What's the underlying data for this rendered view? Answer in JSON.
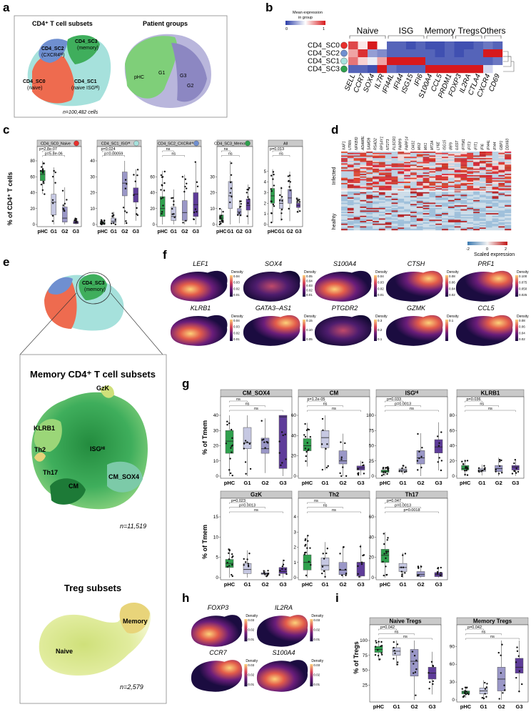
{
  "panels": {
    "a": "a",
    "b": "b",
    "c": "c",
    "d": "d",
    "e": "e",
    "f": "f",
    "g": "g",
    "h": "h",
    "i": "i"
  },
  "panel_a": {
    "umap1_title": "CD4⁺ T cell subsets",
    "umap2_title": "Patient groups",
    "sc2": "CD4_SC2",
    "sc2_sub": "(CXCR4ᴴᴵ)",
    "sc3": "CD4_SC3",
    "sc3_sub": "(memory)",
    "sc0": "CD4_SC0",
    "sc0_sub": "(naive)",
    "sc1": "CD4_SC1",
    "sc1_sub": "(naive ISGᴴᴵ)",
    "groups": [
      "pHC",
      "G1",
      "G3",
      "G2"
    ],
    "cells": "n=100,482 cells"
  },
  "panel_b": {
    "legend_title1": "Mean expression",
    "legend_title2": "in group",
    "legend_min": "0",
    "legend_max": "1",
    "rows": [
      "CD4_SC0",
      "CD4_SC2",
      "CD4_SC1",
      "CD4_SC3"
    ],
    "row_colors": [
      "#e8302d",
      "#6f8fd0",
      "#a6e1dc",
      "#2fa04d"
    ],
    "genes": [
      "SELL",
      "CCR7",
      "SOX4",
      "IL7R",
      "IFI44L",
      "IFI44",
      "ISG15",
      "IFI6",
      "S100A4",
      "CCL5",
      "PRDM1",
      "FOXP3",
      "IL2RA",
      "CTLA4",
      "CXCR4",
      "CD69"
    ],
    "groups": [
      {
        "name": "Naive",
        "n": 4
      },
      {
        "name": "ISG",
        "n": 4
      },
      {
        "name": "Memory",
        "n": 3
      },
      {
        "name": "Tregs",
        "n": 3
      },
      {
        "name": "Others",
        "n": 2
      }
    ],
    "values": [
      [
        0.9,
        0.55,
        1.0,
        0.5,
        0.1,
        0.1,
        0.05,
        0.1,
        0.05,
        0.05,
        0.1,
        0.05,
        0.05,
        0.1,
        0.15,
        0.1
      ],
      [
        0.7,
        0.95,
        0.25,
        0.2,
        0.1,
        0.1,
        0.1,
        0.1,
        0.1,
        0.05,
        0.1,
        0.05,
        0.1,
        0.1,
        1.0,
        1.0
      ],
      [
        0.8,
        0.6,
        0.45,
        0.7,
        1.0,
        1.0,
        1.0,
        1.0,
        0.1,
        0.1,
        0.1,
        0.1,
        0.1,
        0.1,
        0.1,
        0.15
      ],
      [
        0.1,
        0.1,
        0.05,
        1.0,
        0.15,
        0.1,
        0.1,
        0.1,
        1.0,
        1.0,
        1.0,
        1.0,
        1.0,
        1.0,
        0.4,
        0.5
      ]
    ]
  },
  "panel_c": {
    "ylabel": "% of CD4⁺ T cells",
    "xcats": [
      "pHC",
      "G1",
      "G2",
      "G3"
    ],
    "subplots": [
      {
        "title": "CD4_SC0_Naive",
        "dot": "#e8302d",
        "ymax": 80,
        "ticks": [
          0,
          20,
          40,
          60,
          80
        ],
        "p": [
          "p=2.8e-07",
          "p=5.8e-06"
        ],
        "medians": [
          63,
          28,
          8,
          2
        ],
        "q1": [
          55,
          12,
          3,
          1
        ],
        "q3": [
          68,
          38,
          22,
          4
        ]
      },
      {
        "title": "CD4_SC1_ISGᴴᴵ",
        "dot": "#a6e1dc",
        "ymax": 40,
        "ticks": [
          0,
          10,
          20,
          30,
          40
        ],
        "p": [
          "p=0.024",
          "p=0.00059"
        ],
        "medians": [
          1,
          2,
          26,
          19
        ],
        "q1": [
          0.5,
          1,
          18,
          14
        ],
        "q3": [
          1.5,
          4,
          33,
          23
        ]
      },
      {
        "title": "CD4_SC2_CXCR4ᴴᴵ",
        "dot": "#6f8fd0",
        "ymax": 80,
        "ticks": [
          0,
          20,
          40,
          60
        ],
        "p": [
          "ns",
          "ns"
        ],
        "medians": [
          20,
          10,
          15,
          25
        ],
        "q1": [
          10,
          5,
          5,
          10
        ],
        "q3": [
          35,
          22,
          30,
          40
        ]
      },
      {
        "title": "CD4_SC3_Memory",
        "dot": "#2fa04d",
        "ymax": 40,
        "ticks": [
          0,
          10,
          20,
          30
        ],
        "p": [
          "ns",
          "ns"
        ],
        "medians": [
          4,
          18,
          8,
          12
        ],
        "q1": [
          3,
          10,
          6,
          9
        ],
        "q3": [
          6,
          27,
          10,
          16
        ]
      },
      {
        "title": "All",
        "dot": "",
        "ymax": 6,
        "ticks": [
          0,
          1,
          2,
          3,
          4,
          5
        ],
        "p": [
          "p=0.013",
          "ns"
        ],
        "medians": [
          2.7,
          2.0,
          2.5,
          1.8
        ],
        "q1": [
          2.0,
          1.5,
          2.0,
          1.6
        ],
        "q3": [
          3.4,
          2.4,
          3.3,
          2.0
        ]
      }
    ]
  },
  "panel_d": {
    "genes": [
      "XAF1",
      "UTRN",
      "NFKBID",
      "ADAM8L",
      "SAMD9",
      "RSAD2",
      "RPS4Y1",
      "NT2T3",
      "PLSCR1",
      "PARP9",
      "PARP14",
      "OAS1",
      "MX2",
      "MX1",
      "MT2A",
      "LY6E",
      "ISG15",
      "IRF9",
      "IL6ST",
      "IFITM1",
      "IFIT3",
      "IFIT1",
      "IFI6",
      "IFI44L",
      "IFI44",
      "GBP1",
      "DDX60"
    ],
    "row_infected": "Infected",
    "row_healthy": "healhty",
    "legend_title": "Scaled expression",
    "legend_ticks": [
      "-2",
      "0",
      "2"
    ]
  },
  "panel_e": {
    "sc3": "CD4_SC3",
    "sc3_sub": "(memory)",
    "mem_title": "Memory CD4⁺ T cell subsets",
    "mem_labels": [
      "GzK",
      "KLRB1",
      "Th2",
      "ISGᴴᴵ",
      "Th17",
      "CM_SOX4",
      "CM"
    ],
    "mem_n": "n=11,519",
    "treg_title": "Treg subsets",
    "treg_labels": [
      "Memory",
      "Naive"
    ],
    "treg_n": "n=2,579"
  },
  "panel_f": {
    "genes": [
      "LEF1",
      "SOX4",
      "S100A4",
      "CTSH",
      "PRF1",
      "KLRB1",
      "GATA3–AS1",
      "PTGDR2",
      "GZMK",
      "CCL5"
    ],
    "density": "Density",
    "scales": [
      [
        "0.04",
        "0.03",
        "0.02",
        "0.01"
      ],
      [
        "0.05",
        "0.04",
        "0.03",
        "0.02",
        "0.01"
      ],
      [
        "0.04",
        "0.03",
        "0.02",
        "0.01"
      ],
      [
        "0.08",
        "0.06",
        "0.04",
        "0.02"
      ],
      [
        "0.100",
        "0.075",
        "0.050",
        "0.025"
      ],
      [
        "0.04",
        "0.03",
        "0.02",
        "0.01"
      ],
      [
        "0.15",
        "0.10",
        "0.05"
      ],
      [
        "0.3",
        "0.2",
        "0.1"
      ],
      [
        "0.1"
      ],
      [
        "0.08",
        "0.06",
        "0.04",
        "0.02"
      ]
    ]
  },
  "panel_g": {
    "ylabel_top": "% of Tmem",
    "ylabel_bottom": "% of Tmem",
    "xcats": [
      "pHC",
      "G1",
      "G2",
      "G3"
    ],
    "subplots": [
      {
        "title": "CM_SOX4",
        "ymax": 40,
        "ticks": [
          0,
          10,
          20,
          30,
          40
        ],
        "p": [
          "ns",
          "ns",
          "ns"
        ],
        "medians": [
          23,
          22,
          18,
          39
        ],
        "q1": [
          15,
          18,
          15,
          5
        ],
        "q3": [
          30,
          32,
          25,
          40
        ],
        "c3": "#5e3c99"
      },
      {
        "title": "CM",
        "ymax": 60,
        "ticks": [
          0,
          20,
          40,
          60
        ],
        "p": [
          "p=1.2e-05",
          "ns",
          "ns"
        ],
        "medians": [
          30,
          38,
          15,
          8
        ],
        "q1": [
          25,
          28,
          12,
          6
        ],
        "q3": [
          37,
          45,
          25,
          10
        ],
        "c3": "#5e3c99"
      },
      {
        "title": "ISGᴴᴵ",
        "ymax": 100,
        "ticks": [
          0,
          25,
          50,
          75,
          100
        ],
        "p": [
          "p=0.033",
          "p=0.0013",
          "ns"
        ],
        "medians": [
          8,
          10,
          30,
          48
        ],
        "q1": [
          6,
          8,
          20,
          38
        ],
        "q3": [
          10,
          12,
          42,
          60
        ],
        "c3": "#5e3c99"
      },
      {
        "title": "KLRB1",
        "ymax": 80,
        "ticks": [
          0,
          20,
          40,
          60,
          80
        ],
        "p": [
          "p=0.036",
          "ns",
          "ns"
        ],
        "medians": [
          10,
          8,
          10,
          12
        ],
        "q1": [
          8,
          6,
          6,
          8
        ],
        "q3": [
          14,
          10,
          14,
          14
        ],
        "c3": "#5e3c99"
      },
      {
        "title": "GzK",
        "ymax": 15,
        "ticks": [
          0,
          5,
          10,
          15
        ],
        "p": [
          "p=0.023",
          "p=0.0013",
          "ns"
        ],
        "medians": [
          3.5,
          2.0,
          1.0,
          1.5
        ],
        "q1": [
          2.5,
          1.0,
          0.8,
          1.0
        ],
        "q3": [
          4.5,
          3.5,
          1.2,
          2.5
        ],
        "c3": "#5e3c99"
      },
      {
        "title": "Th2",
        "ymax": 4,
        "ticks": [
          0,
          1,
          2,
          3,
          4
        ],
        "p": [
          "ns",
          "ns",
          "ns"
        ],
        "medians": [
          1.0,
          0.8,
          0.5,
          1.0
        ],
        "q1": [
          0.5,
          0.5,
          0.2,
          0.1
        ],
        "q3": [
          1.5,
          1.3,
          1.0,
          1.0
        ],
        "c3": "#5e3c99"
      },
      {
        "title": "Th17",
        "ymax": 60,
        "ticks": [
          0,
          20,
          40,
          60
        ],
        "p": [
          "p=0.047",
          "p=0.0013",
          "p=0.0018"
        ],
        "medians": [
          22,
          10,
          3,
          3
        ],
        "q1": [
          15,
          6,
          1,
          1
        ],
        "q3": [
          28,
          14,
          6,
          5
        ],
        "c3": "#5e3c99"
      }
    ]
  },
  "panel_h": {
    "genes": [
      "FOXP3",
      "IL2RA",
      "CCR7",
      "S100A4"
    ],
    "density": "Density",
    "scales": [
      [
        "0.03",
        "0.02",
        "0.01"
      ],
      [
        "0.03",
        "0.02",
        "0.01"
      ],
      [
        "0.03",
        "0.02",
        "0.01"
      ],
      [
        "0.03",
        "0.02",
        "0.01"
      ]
    ]
  },
  "panel_i": {
    "ylabel": "% of Tregs",
    "xcats": [
      "pHC",
      "G1",
      "G2",
      "G3"
    ],
    "subplots": [
      {
        "title": "Naive Tregs",
        "ymax": 100,
        "ticks": [
          25,
          50,
          75,
          100
        ],
        "p": [
          "p=0.042",
          "ns",
          "ns"
        ],
        "medians": [
          85,
          82,
          65,
          45
        ],
        "q1": [
          80,
          75,
          40,
          35
        ],
        "q3": [
          90,
          88,
          85,
          55
        ]
      },
      {
        "title": "Memory Tregs",
        "ymax": 100,
        "ticks": [
          0,
          30,
          60,
          90
        ],
        "p": [
          "p=0.042",
          "ns",
          "ns"
        ],
        "medians": [
          13,
          15,
          35,
          55
        ],
        "q1": [
          10,
          10,
          15,
          45
        ],
        "q3": [
          15,
          20,
          55,
          70
        ]
      }
    ]
  },
  "colors": {
    "pHC": "#2fa04d",
    "G1": "#c6c8e2",
    "G2": "#9a97c7",
    "G3": "#5e3c99"
  }
}
